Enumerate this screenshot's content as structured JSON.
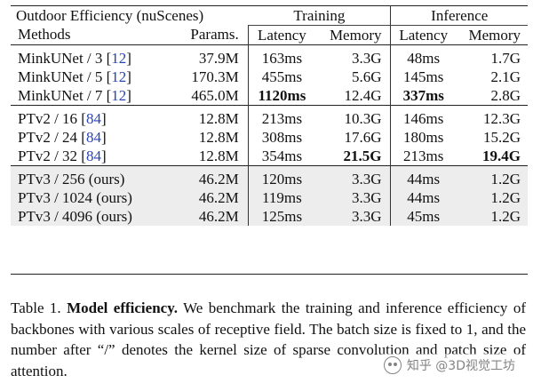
{
  "table": {
    "corner_label": "Outdoor Efficiency (nuScenes)",
    "group_training": "Training",
    "group_inference": "Inference",
    "headers": {
      "methods": "Methods",
      "params": "Params.",
      "train_latency": "Latency",
      "train_memory": "Memory",
      "inf_latency": "Latency",
      "inf_memory": "Memory"
    },
    "groups": [
      {
        "rows": [
          {
            "method": "MinkUNet / 3 [",
            "cite": "12",
            "close": "]",
            "params": "37.9M",
            "train_latency": "163ms",
            "train_memory": "3.3G",
            "inf_latency": "48ms",
            "inf_memory": "1.7G"
          },
          {
            "method": "MinkUNet / 5 [",
            "cite": "12",
            "close": "]",
            "params": "170.3M",
            "train_latency": "455ms",
            "train_memory": "5.6G",
            "inf_latency": "145ms",
            "inf_memory": "2.1G"
          },
          {
            "method": "MinkUNet / 7 [",
            "cite": "12",
            "close": "]",
            "params": "465.0M",
            "train_latency": "1120ms",
            "train_memory": "12.4G",
            "inf_latency": "337ms",
            "inf_memory": "2.8G"
          }
        ]
      },
      {
        "rows": [
          {
            "method": "PTv2 / 16 [",
            "cite": "84",
            "close": "]",
            "params": "12.8M",
            "train_latency": "213ms",
            "train_memory": "10.3G",
            "inf_latency": "146ms",
            "inf_memory": "12.3G"
          },
          {
            "method": "PTv2 / 24 [",
            "cite": "84",
            "close": "]",
            "params": "12.8M",
            "train_latency": "308ms",
            "train_memory": "17.6G",
            "inf_latency": "180ms",
            "inf_memory": "15.2G"
          },
          {
            "method": "PTv2 / 32 [",
            "cite": "84",
            "close": "]",
            "params": "12.8M",
            "train_latency": "354ms",
            "train_memory": "21.5G",
            "inf_latency": "213ms",
            "inf_memory": "19.4G"
          }
        ]
      },
      {
        "rows": [
          {
            "method": "PTv3 / 256 (ours)",
            "params": "46.2M",
            "train_latency": "120ms",
            "train_memory": "3.3G",
            "inf_latency": "44ms",
            "inf_memory": "1.2G"
          },
          {
            "method": "PTv3 / 1024 (ours)",
            "params": "46.2M",
            "train_latency": "119ms",
            "train_memory": "3.3G",
            "inf_latency": "44ms",
            "inf_memory": "1.2G"
          },
          {
            "method": "PTv3 / 4096 (ours)",
            "params": "46.2M",
            "train_latency": "125ms",
            "train_memory": "3.3G",
            "inf_latency": "45ms",
            "inf_memory": "1.2G"
          }
        ]
      }
    ]
  },
  "caption": {
    "label": "Table 1.",
    "title": "Model efficiency.",
    "text": "We benchmark the training and inference efficiency of backbones with various scales of receptive field. The batch size is fixed to 1, and the number after “/” denotes the kernel size of sparse convolution and patch size of attention."
  },
  "watermark": {
    "text": "知乎 @3D视觉工坊",
    "icon": "wechat-icon"
  }
}
